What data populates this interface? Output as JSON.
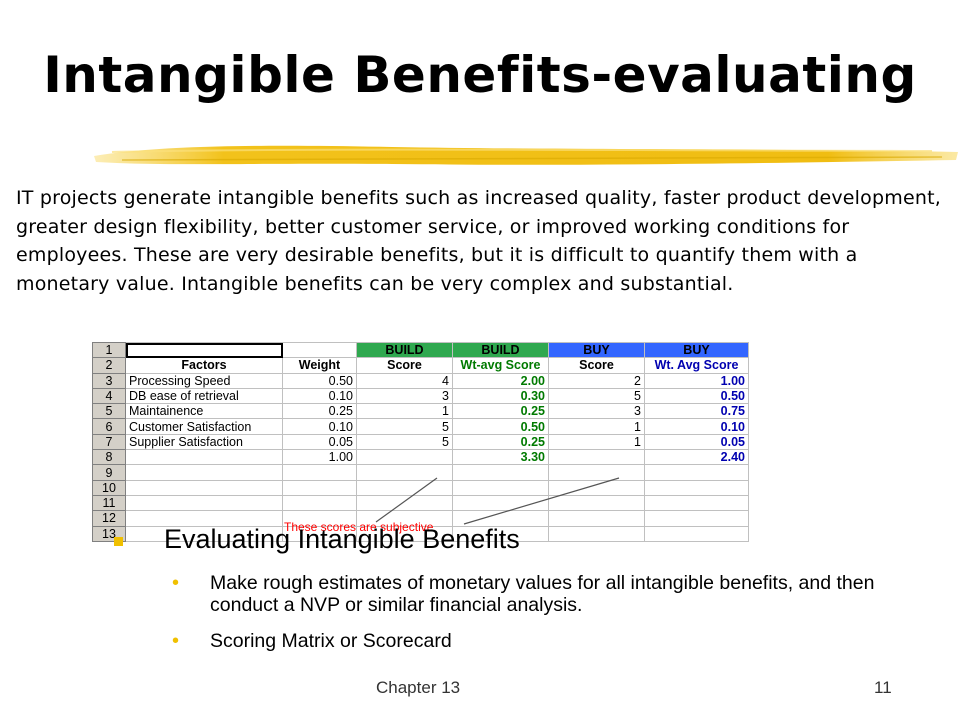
{
  "slide": {
    "title": "Intangible Benefits-evaluating",
    "intro": "IT projects generate intangible benefits such as increased quality, faster product development, greater design flexibility, better customer service, or improved working conditions for employees. These are very desirable benefits, but it is difficult to quantify them with a monetary value. Intangible benefits can be very complex and substantial.",
    "subheading": "Evaluating Intangible Benefits",
    "bullets": [
      "Make rough estimates of monetary values for all intangible benefits, and then conduct a NVP or similar financial analysis.",
      "Scoring Matrix or Scorecard"
    ],
    "footer_left": "Chapter 13",
    "page_number": "11"
  },
  "spreadsheet": {
    "row_numbers": [
      "1",
      "2",
      "3",
      "4",
      "5",
      "6",
      "7",
      "8",
      "9",
      "10",
      "11",
      "12",
      "13"
    ],
    "group_headers": [
      "BUILD",
      "BUILD",
      "BUY",
      "BUY"
    ],
    "column_headers": [
      "Factors",
      "Weight",
      "Score",
      "Wt-avg Score",
      "Score",
      "Wt. Avg Score"
    ],
    "rows": [
      [
        "Processing Speed",
        "0.50",
        "4",
        "2.00",
        "2",
        "1.00"
      ],
      [
        "DB ease of retrieval",
        "0.10",
        "3",
        "0.30",
        "5",
        "0.50"
      ],
      [
        "Maintainence",
        "0.25",
        "1",
        "0.25",
        "3",
        "0.75"
      ],
      [
        "Customer Satisfaction",
        "0.10",
        "5",
        "0.50",
        "1",
        "0.10"
      ],
      [
        "Supplier Satisfaction",
        "0.05",
        "5",
        "0.25",
        "1",
        "0.05"
      ]
    ],
    "totals": [
      "",
      "1.00",
      "",
      "3.30",
      "",
      "2.40"
    ],
    "note": "These scores are subjective"
  },
  "colors": {
    "build_header": "#2fa84f",
    "buy_header": "#3366ff",
    "build_values": "#007a00",
    "buy_values": "#0000b0",
    "note": "#ff0000",
    "bullet": "#f0c000",
    "brush": "#f2c21b"
  }
}
